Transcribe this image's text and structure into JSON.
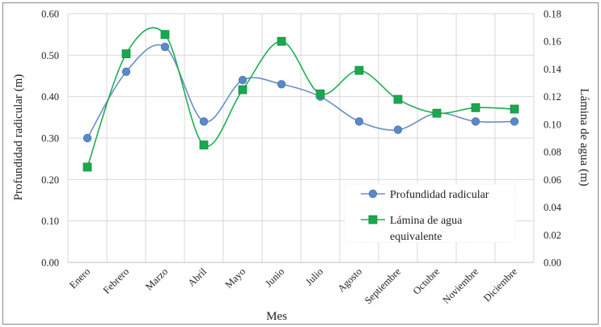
{
  "chart_data": {
    "type": "line",
    "title": "",
    "xlabel": "Mes",
    "ylabel_left": "Profundidad radicular (m)",
    "ylabel_right": "Lámina de agua (m)",
    "categories": [
      "Enero",
      "Febrero",
      "Marzo",
      "Abril",
      "Mayo",
      "Junio",
      "Julio",
      "Agosto",
      "Septiembre",
      "Octubre",
      "Noviembre",
      "Diciembre"
    ],
    "ylim_left": [
      0,
      0.6
    ],
    "ylim_right": [
      0,
      0.18
    ],
    "yticks_left": [
      "0.00",
      "0.10",
      "0.20",
      "0.30",
      "0.40",
      "0.50",
      "0.60"
    ],
    "yticks_right": [
      "0.00",
      "0.02",
      "0.04",
      "0.06",
      "0.08",
      "0.10",
      "0.12",
      "0.14",
      "0.16",
      "0.18"
    ],
    "grid": true,
    "legend_position": "lower-right",
    "series": [
      {
        "name": "Profundidad radicular",
        "axis": "left",
        "marker": "circle",
        "color": "#6a8fc4",
        "values": [
          0.3,
          0.46,
          0.52,
          0.34,
          0.44,
          0.43,
          0.4,
          0.34,
          0.32,
          0.36,
          0.34,
          0.34
        ]
      },
      {
        "name": "Lámina de agua equivalente",
        "name_lines": [
          "Lámina de agua",
          "equivalente"
        ],
        "axis": "right",
        "marker": "square",
        "color": "#1fae56",
        "values": [
          0.069,
          0.151,
          0.165,
          0.085,
          0.125,
          0.16,
          0.122,
          0.139,
          0.118,
          0.108,
          0.112,
          0.111
        ]
      }
    ]
  }
}
